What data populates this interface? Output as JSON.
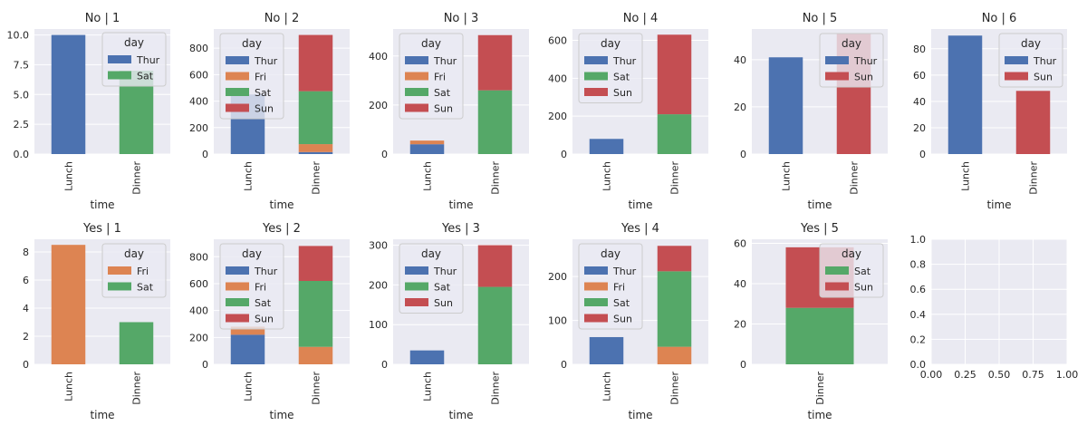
{
  "colors": {
    "axes_bg": "#eaeaf2",
    "grid": "#ffffff",
    "Thur": "#4c72b0",
    "Fri": "#dd8452",
    "Sat": "#55a868",
    "Sun": "#c44e52"
  },
  "chart_data": [
    {
      "type": "bar",
      "stacked": true,
      "title": "No | 1",
      "xlabel": "time",
      "categories": [
        "Lunch",
        "Dinner"
      ],
      "ylim": [
        0,
        10.5
      ],
      "yticks": [
        0,
        2.5,
        5,
        7.5,
        10
      ],
      "ytick_labels": [
        "0.0",
        "2.5",
        "5.0",
        "7.5",
        "10.0"
      ],
      "legend_title": "day",
      "legend_loc": "center-right",
      "series": [
        {
          "name": "Thur",
          "values": [
            10,
            0
          ]
        },
        {
          "name": "Sat",
          "values": [
            0,
            7
          ]
        }
      ]
    },
    {
      "type": "bar",
      "stacked": true,
      "title": "No | 2",
      "xlabel": "time",
      "categories": [
        "Lunch",
        "Dinner"
      ],
      "ylim": [
        0,
        945
      ],
      "yticks": [
        0,
        200,
        400,
        600,
        800
      ],
      "ytick_labels": [
        "0",
        "200",
        "400",
        "600",
        "800"
      ],
      "legend_title": "day",
      "legend_loc": "top-center",
      "series": [
        {
          "name": "Thur",
          "values": [
            450,
            15
          ]
        },
        {
          "name": "Fri",
          "values": [
            0,
            60
          ]
        },
        {
          "name": "Sat",
          "values": [
            0,
            400
          ]
        },
        {
          "name": "Sun",
          "values": [
            0,
            425
          ]
        }
      ]
    },
    {
      "type": "bar",
      "stacked": true,
      "title": "No | 3",
      "xlabel": "time",
      "categories": [
        "Lunch",
        "Dinner"
      ],
      "ylim": [
        0,
        510
      ],
      "yticks": [
        0,
        200,
        400
      ],
      "ytick_labels": [
        "0",
        "200",
        "400"
      ],
      "legend_title": "day",
      "legend_loc": "top-center",
      "series": [
        {
          "name": "Thur",
          "values": [
            40,
            0
          ]
        },
        {
          "name": "Fri",
          "values": [
            15,
            0
          ]
        },
        {
          "name": "Sat",
          "values": [
            0,
            260
          ]
        },
        {
          "name": "Sun",
          "values": [
            0,
            225
          ]
        }
      ]
    },
    {
      "type": "bar",
      "stacked": true,
      "title": "No | 4",
      "xlabel": "time",
      "categories": [
        "Lunch",
        "Dinner"
      ],
      "ylim": [
        0,
        660
      ],
      "yticks": [
        0,
        200,
        400,
        600
      ],
      "ytick_labels": [
        "0",
        "200",
        "400",
        "600"
      ],
      "legend_title": "day",
      "legend_loc": "top-center",
      "series": [
        {
          "name": "Thur",
          "values": [
            80,
            0
          ]
        },
        {
          "name": "Sat",
          "values": [
            0,
            210
          ]
        },
        {
          "name": "Sun",
          "values": [
            0,
            420
          ]
        }
      ]
    },
    {
      "type": "bar",
      "stacked": true,
      "title": "No | 5",
      "xlabel": "time",
      "categories": [
        "Lunch",
        "Dinner"
      ],
      "ylim": [
        0,
        53
      ],
      "yticks": [
        0,
        20,
        40
      ],
      "ytick_labels": [
        "0",
        "20",
        "40"
      ],
      "legend_title": "day",
      "legend_loc": "top-right",
      "series": [
        {
          "name": "Thur",
          "values": [
            41,
            0
          ]
        },
        {
          "name": "Sun",
          "values": [
            0,
            51
          ]
        }
      ]
    },
    {
      "type": "bar",
      "stacked": true,
      "title": "No | 6",
      "xlabel": "time",
      "categories": [
        "Lunch",
        "Dinner"
      ],
      "ylim": [
        0,
        95
      ],
      "yticks": [
        0,
        20,
        40,
        60,
        80
      ],
      "ytick_labels": [
        "0",
        "20",
        "40",
        "60",
        "80"
      ],
      "legend_title": "day",
      "legend_loc": "top-right",
      "series": [
        {
          "name": "Thur",
          "values": [
            90,
            0
          ]
        },
        {
          "name": "Sun",
          "values": [
            0,
            48
          ]
        }
      ]
    },
    {
      "type": "bar",
      "stacked": true,
      "title": "Yes | 1",
      "xlabel": "time",
      "categories": [
        "Lunch",
        "Dinner"
      ],
      "ylim": [
        0,
        8.9
      ],
      "yticks": [
        0,
        2,
        4,
        6,
        8
      ],
      "ytick_labels": [
        "0",
        "2",
        "4",
        "6",
        "8"
      ],
      "legend_title": "day",
      "legend_loc": "top-right",
      "series": [
        {
          "name": "Fri",
          "values": [
            8.5,
            0
          ]
        },
        {
          "name": "Sat",
          "values": [
            0,
            3
          ]
        }
      ]
    },
    {
      "type": "bar",
      "stacked": true,
      "title": "Yes | 2",
      "xlabel": "time",
      "categories": [
        "Lunch",
        "Dinner"
      ],
      "ylim": [
        0,
        930
      ],
      "yticks": [
        0,
        200,
        400,
        600,
        800
      ],
      "ytick_labels": [
        "0",
        "200",
        "400",
        "600",
        "800"
      ],
      "legend_title": "day",
      "legend_loc": "top-center",
      "series": [
        {
          "name": "Thur",
          "values": [
            220,
            0
          ]
        },
        {
          "name": "Fri",
          "values": [
            60,
            130
          ]
        },
        {
          "name": "Sat",
          "values": [
            0,
            490
          ]
        },
        {
          "name": "Sun",
          "values": [
            0,
            260
          ]
        }
      ]
    },
    {
      "type": "bar",
      "stacked": true,
      "title": "Yes | 3",
      "xlabel": "time",
      "categories": [
        "Lunch",
        "Dinner"
      ],
      "ylim": [
        0,
        315
      ],
      "yticks": [
        0,
        100,
        200,
        300
      ],
      "ytick_labels": [
        "0",
        "100",
        "200",
        "300"
      ],
      "legend_title": "day",
      "legend_loc": "top-center",
      "series": [
        {
          "name": "Thur",
          "values": [
            35,
            0
          ]
        },
        {
          "name": "Sat",
          "values": [
            0,
            195
          ]
        },
        {
          "name": "Sun",
          "values": [
            0,
            105
          ]
        }
      ]
    },
    {
      "type": "bar",
      "stacked": true,
      "title": "Yes | 4",
      "xlabel": "time",
      "categories": [
        "Lunch",
        "Dinner"
      ],
      "ylim": [
        0,
        285
      ],
      "yticks": [
        0,
        100,
        200
      ],
      "ytick_labels": [
        "0",
        "100",
        "200"
      ],
      "legend_title": "day",
      "legend_loc": "top-center",
      "series": [
        {
          "name": "Thur",
          "values": [
            62,
            0
          ]
        },
        {
          "name": "Fri",
          "values": [
            0,
            40
          ]
        },
        {
          "name": "Sat",
          "values": [
            0,
            172
          ]
        },
        {
          "name": "Sun",
          "values": [
            0,
            58
          ]
        }
      ]
    },
    {
      "type": "bar",
      "stacked": true,
      "title": "Yes | 5",
      "xlabel": "time",
      "categories": [
        "Dinner"
      ],
      "ylim": [
        0,
        62
      ],
      "yticks": [
        0,
        20,
        40,
        60
      ],
      "ytick_labels": [
        "0",
        "20",
        "40",
        "60"
      ],
      "legend_title": "day",
      "legend_loc": "top-right",
      "series": [
        {
          "name": "Sat",
          "values": [
            28
          ]
        },
        {
          "name": "Sun",
          "values": [
            30
          ]
        }
      ]
    },
    {
      "type": "empty",
      "xlim": [
        0,
        1
      ],
      "ylim": [
        0,
        1
      ],
      "xticks": [
        0,
        0.25,
        0.5,
        0.75,
        1
      ],
      "xtick_labels": [
        "0.00",
        "0.25",
        "0.50",
        "0.75",
        "1.00"
      ],
      "yticks": [
        0,
        0.2,
        0.4,
        0.6,
        0.8,
        1
      ],
      "ytick_labels": [
        "0.0",
        "0.2",
        "0.4",
        "0.6",
        "0.8",
        "1.0"
      ]
    }
  ]
}
